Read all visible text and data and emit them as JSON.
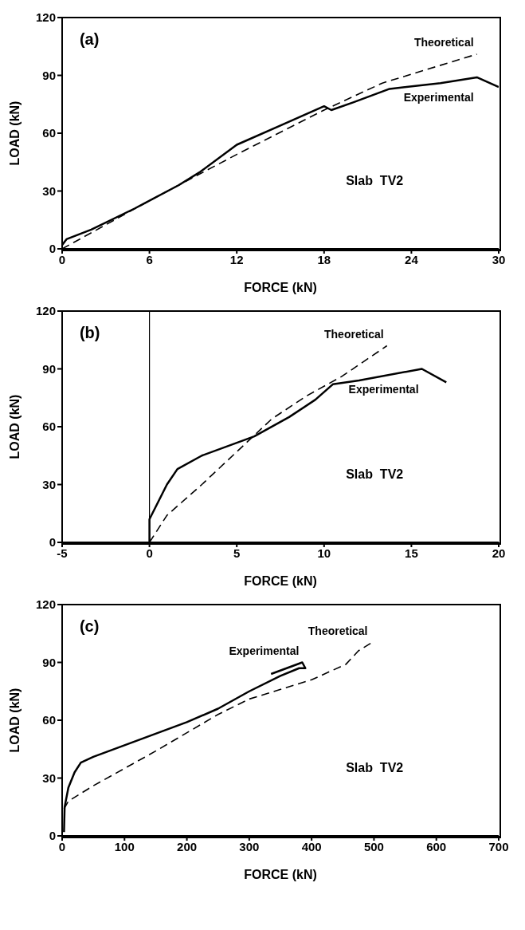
{
  "chart_data": [
    {
      "type": "line",
      "xlabel": "FORCE  (kN)",
      "ylabel": "LOAD  (kN)",
      "annotations": [
        "(a)",
        "Slab  TV2"
      ],
      "xlim": [
        0,
        30
      ],
      "xticks": [
        0,
        6,
        12,
        18,
        24,
        30
      ],
      "ylim": [
        0,
        120
      ],
      "yticks": [
        0,
        30,
        60,
        90,
        120
      ],
      "series": [
        {
          "name": "Experimental",
          "color": "#000000",
          "line_style": "solid",
          "x": [
            0,
            0.3,
            2,
            5,
            8,
            9.5,
            12,
            15,
            18,
            18.5,
            20,
            22.5,
            26,
            28.5,
            30
          ],
          "values": [
            2,
            5,
            10,
            21,
            33,
            40,
            54,
            64,
            74,
            72,
            76,
            83,
            86,
            89,
            84
          ]
        },
        {
          "name": "Theoretical",
          "color": "#000000",
          "line_style": "dashed",
          "x": [
            0,
            6,
            9,
            12,
            18,
            22,
            28.5
          ],
          "values": [
            0,
            25,
            37,
            49,
            72,
            86,
            101
          ]
        }
      ]
    },
    {
      "type": "line",
      "xlabel": "FORCE  (kN)",
      "ylabel": "LOAD  (kN)",
      "annotations": [
        "(b)",
        "Slab  TV2"
      ],
      "xlim": [
        -5,
        20
      ],
      "xticks": [
        -5,
        0,
        5,
        10,
        15,
        20
      ],
      "ylim": [
        0,
        120
      ],
      "yticks": [
        0,
        30,
        60,
        90,
        120
      ],
      "ref_lines": [
        {
          "axis": "x",
          "value": 0,
          "color": "#000000"
        }
      ],
      "series": [
        {
          "name": "Experimental",
          "color": "#000000",
          "line_style": "solid",
          "x": [
            0,
            0,
            1,
            1.6,
            3,
            6,
            8,
            9.5,
            10.5,
            12,
            15.6,
            17
          ],
          "values": [
            0,
            12,
            30,
            38,
            45,
            55,
            65,
            74,
            82,
            84,
            90,
            83
          ]
        },
        {
          "name": "Theoretical",
          "color": "#000000",
          "line_style": "dashed",
          "x": [
            0,
            1,
            3,
            5,
            7,
            9,
            11,
            13.6
          ],
          "values": [
            0,
            14,
            30,
            47,
            64,
            76,
            86,
            102
          ]
        }
      ]
    },
    {
      "type": "line",
      "xlabel": "FORCE  (kN)",
      "ylabel": "LOAD  (kN)",
      "annotations": [
        "(c)",
        "Slab  TV2"
      ],
      "xlim": [
        0,
        700
      ],
      "xticks": [
        0,
        100,
        200,
        300,
        400,
        500,
        600,
        700
      ],
      "ylim": [
        0,
        120
      ],
      "yticks": [
        0,
        30,
        60,
        90,
        120
      ],
      "series": [
        {
          "name": "Experimental",
          "color": "#000000",
          "line_style": "solid",
          "x": [
            3,
            4,
            10,
            20,
            30,
            50,
            100,
            200,
            250,
            300,
            350,
            380,
            390,
            385,
            335
          ],
          "values": [
            2,
            15,
            25,
            33,
            38,
            41,
            47,
            59,
            66,
            75,
            83,
            87,
            87,
            90,
            84
          ]
        },
        {
          "name": "Theoretical",
          "color": "#000000",
          "line_style": "dashed",
          "x": [
            3,
            10,
            50,
            150,
            250,
            300,
            400,
            455,
            475,
            495
          ],
          "values": [
            14,
            18,
            26,
            44,
            63,
            71,
            81,
            89,
            96,
            100
          ]
        }
      ]
    }
  ]
}
